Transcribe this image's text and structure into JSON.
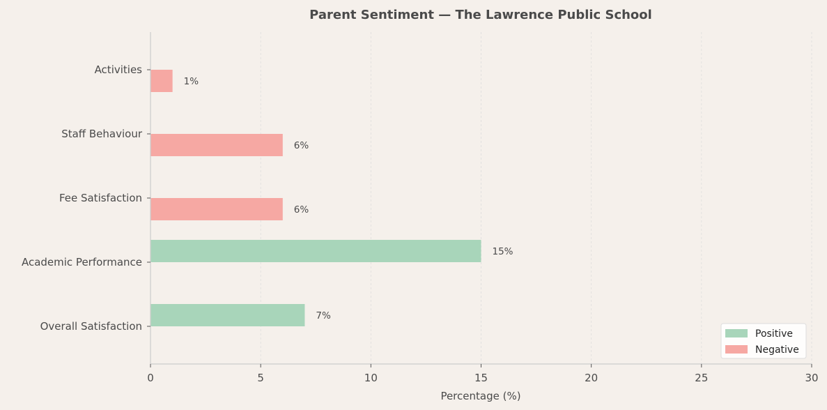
{
  "chart_data": {
    "type": "bar",
    "orientation": "horizontal",
    "title": "Parent Sentiment — The Lawrence Public School",
    "xlabel": "Percentage (%)",
    "ylabel": "",
    "xlim": [
      0,
      30
    ],
    "xticks": [
      0,
      5,
      10,
      15,
      20,
      25,
      30
    ],
    "grid": "vertical-dashed",
    "categories": [
      "Overall Satisfaction",
      "Academic Performance",
      "Fee Satisfaction",
      "Staff Behaviour",
      "Activities"
    ],
    "series": [
      {
        "name": "Positive",
        "color": "#a8d5ba",
        "values": [
          7,
          15,
          null,
          null,
          null
        ]
      },
      {
        "name": "Negative",
        "color": "#f6a8a3",
        "values": [
          null,
          null,
          6,
          6,
          1
        ]
      }
    ],
    "data_label_suffix": "%",
    "legend_position": "bottom-right"
  },
  "colors": {
    "background": "#f5f0eb",
    "text": "#4a4a4a",
    "axis": "#cccccc",
    "grid": "#dddddd"
  }
}
